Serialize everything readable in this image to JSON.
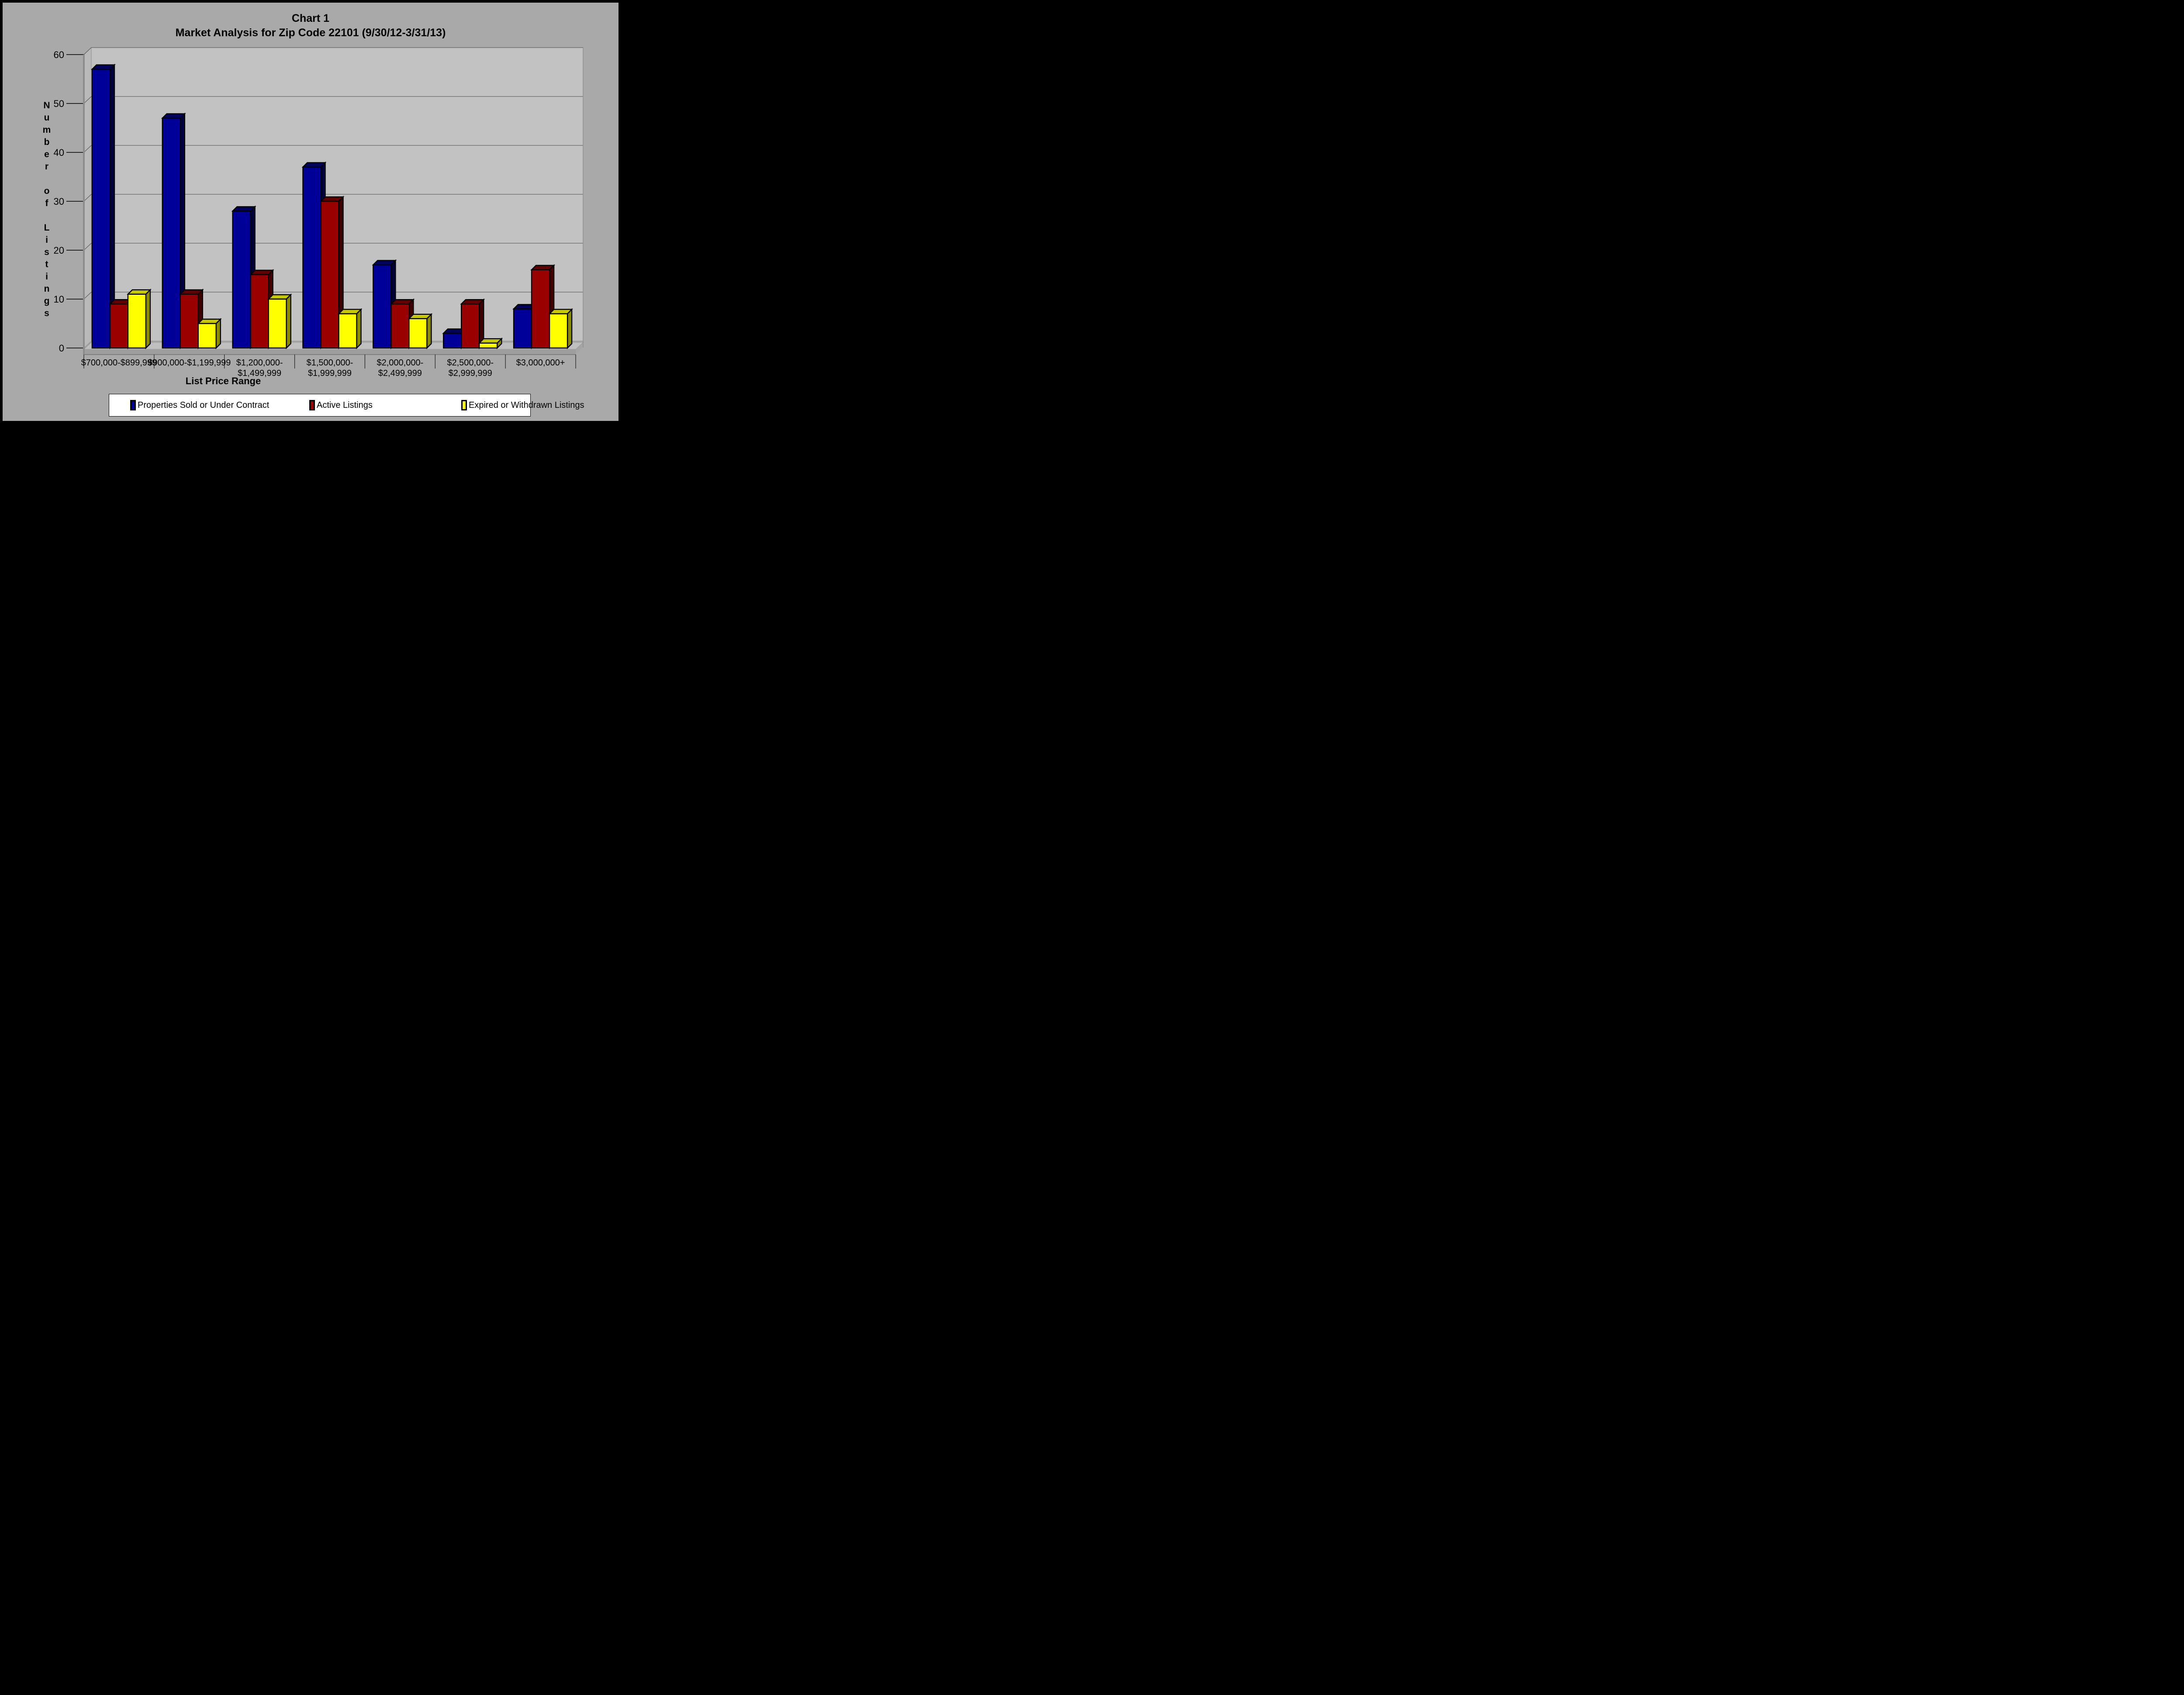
{
  "window": {
    "background_color": "#A9A9A9",
    "border_color": "#000000"
  },
  "chart_data": {
    "type": "bar",
    "subtype": "3d-clustered-column",
    "title": "Chart 1",
    "subtitle": "Market Analysis for Zip Code 22101 (9/30/12-3/31/13)",
    "xlabel": "List Price Range",
    "ylabel": "Number of Listings",
    "ylim": [
      0,
      60
    ],
    "ytick_interval": 10,
    "yticks": [
      0,
      10,
      20,
      30,
      40,
      50,
      60
    ],
    "grid": true,
    "legend_position": "bottom-center",
    "categories": [
      "$700,000-$899,999",
      "$900,000-$1,199,999",
      "$1,200,000-$1,499,999",
      "$1,500,000-$1,999,999",
      "$2,000,000-$2,499,999",
      "$2,500,000-$2,999,999",
      "$3,000,000+"
    ],
    "categories_wrapped": [
      [
        "$700,000-$899,999"
      ],
      [
        "$900,000-$1,199,999"
      ],
      [
        "$1,200,000-",
        "$1,499,999"
      ],
      [
        "$1,500,000-",
        "$1,999,999"
      ],
      [
        "$2,000,000-",
        "$2,499,999"
      ],
      [
        "$2,500,000-",
        "$2,999,999"
      ],
      [
        "$3,000,000+"
      ]
    ],
    "series": [
      {
        "name": "Properties Sold or Under Contract",
        "values": [
          57,
          47,
          28,
          37,
          17,
          3,
          8
        ],
        "color_front": "#000099",
        "color_top": "#000061",
        "color_side": "#00003D"
      },
      {
        "name": "Active Listings",
        "values": [
          9,
          11,
          15,
          30,
          9,
          9,
          16
        ],
        "color_front": "#990000",
        "color_top": "#600000",
        "color_side": "#400000"
      },
      {
        "name": "Expired or Withdrawn Listings",
        "values": [
          11,
          5,
          10,
          7,
          6,
          1,
          7
        ],
        "color_front": "#FFFF00",
        "color_top": "#C8C800",
        "color_side": "#8B8B00"
      }
    ],
    "scene_colors": {
      "back_wall": "#C2C2C2",
      "left_wall": "#B9B9B9",
      "floor_top": "#BFBFBF",
      "floor_front": "#9E9E9E",
      "gridline": "#4D4D4D",
      "axis_edge": "#8C8C8C",
      "tick": "#000000",
      "bar_outline": "#000000"
    }
  }
}
